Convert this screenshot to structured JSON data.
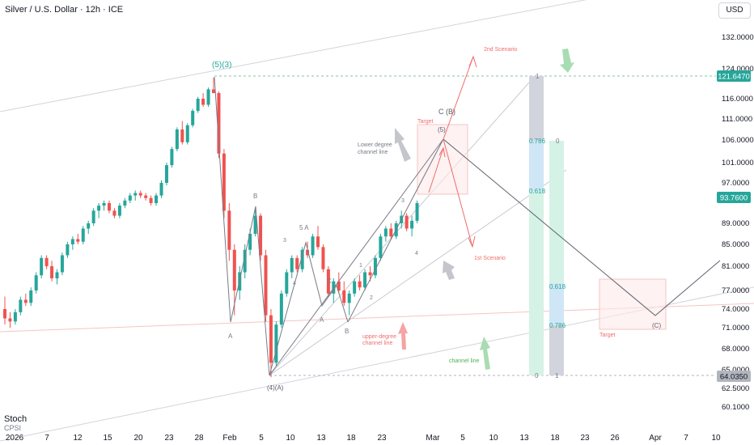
{
  "header": {
    "title": "Silver / U.S. Dollar · 12h · ICE",
    "currency_button": "USD"
  },
  "indicator": {
    "name": "Stoch",
    "sub": "CPSI"
  },
  "colors": {
    "up": "#26a69a",
    "down": "#ef5350",
    "fib_green": "#26a69a",
    "annotation_red": "#f06c6c",
    "annotation_green": "#4caf50",
    "wave_grey": "#787b86"
  },
  "chart_data": {
    "type": "candlestick",
    "symbol": "Silver / U.S. Dollar",
    "interval": "12h",
    "exchange": "ICE",
    "y_ticks": [
      132.0,
      124.0,
      116.0,
      111.0,
      106.0,
      101.0,
      97.0,
      89.0,
      85.0,
      81.0,
      77.0,
      74.0,
      71.0,
      68.0,
      65.0,
      62.5,
      60.1
    ],
    "y_tick_labels": [
      "132.0000",
      "124.0000",
      "116.0000",
      "111.0000",
      "106.0000",
      "101.0000",
      "97.0000",
      "89.0000",
      "85.0000",
      "81.0000",
      "77.0000",
      "74.0000",
      "71.0000",
      "68.0000",
      "65.0000",
      "62.5000",
      "60.1000"
    ],
    "x_tick_labels": [
      "2026",
      "7",
      "12",
      "15",
      "20",
      "23",
      "28",
      "Feb",
      "5",
      "10",
      "13",
      "18",
      "23",
      "Mar",
      "5",
      "10",
      "13",
      "18",
      "23",
      "26",
      "Apr",
      "7",
      "10"
    ],
    "price_labels": [
      {
        "value": "121.6470",
        "color": "#26a69a"
      },
      {
        "value": "93.7600",
        "color": "#26a69a"
      },
      {
        "value": "64.0350",
        "color": "#b2b5be"
      }
    ],
    "candles": [
      [
        74.0,
        76.0,
        71.5,
        72.5
      ],
      [
        72.5,
        73.5,
        71.0,
        72.0
      ],
      [
        72.0,
        74.0,
        71.5,
        73.5
      ],
      [
        73.5,
        76.0,
        73.0,
        75.5
      ],
      [
        75.5,
        76.5,
        74.5,
        75.0
      ],
      [
        75.0,
        77.5,
        74.5,
        77.0
      ],
      [
        77.0,
        80.0,
        76.5,
        79.5
      ],
      [
        79.5,
        83.0,
        79.0,
        82.5
      ],
      [
        82.5,
        83.0,
        80.5,
        81.0
      ],
      [
        81.0,
        82.0,
        78.5,
        79.0
      ],
      [
        79.0,
        80.5,
        78.0,
        80.0
      ],
      [
        80.0,
        83.5,
        79.5,
        83.0
      ],
      [
        83.0,
        85.5,
        82.5,
        85.0
      ],
      [
        85.0,
        86.5,
        84.0,
        86.0
      ],
      [
        86.0,
        87.0,
        85.0,
        85.5
      ],
      [
        85.5,
        88.5,
        85.0,
        88.0
      ],
      [
        88.0,
        89.5,
        87.0,
        89.0
      ],
      [
        89.0,
        92.0,
        88.5,
        91.5
      ],
      [
        91.5,
        93.0,
        90.0,
        92.5
      ],
      [
        92.5,
        93.5,
        91.5,
        93.0
      ],
      [
        93.0,
        93.5,
        91.0,
        91.5
      ],
      [
        91.5,
        92.0,
        90.0,
        90.5
      ],
      [
        90.5,
        93.0,
        90.0,
        92.5
      ],
      [
        92.5,
        94.0,
        92.0,
        93.5
      ],
      [
        93.5,
        95.0,
        93.0,
        94.5
      ],
      [
        94.5,
        95.5,
        93.5,
        95.0
      ],
      [
        95.0,
        95.5,
        94.0,
        94.5
      ],
      [
        94.5,
        95.0,
        93.5,
        94.0
      ],
      [
        94.0,
        94.5,
        92.5,
        93.0
      ],
      [
        93.0,
        95.0,
        92.5,
        94.5
      ],
      [
        94.5,
        97.5,
        94.0,
        97.0
      ],
      [
        97.0,
        101.0,
        96.5,
        100.5
      ],
      [
        100.5,
        104.5,
        100.0,
        104.0
      ],
      [
        104.0,
        109.0,
        103.5,
        108.5
      ],
      [
        108.5,
        110.5,
        105.0,
        105.5
      ],
      [
        105.5,
        110.0,
        105.0,
        109.5
      ],
      [
        109.5,
        113.5,
        109.0,
        113.0
      ],
      [
        113.0,
        116.5,
        112.5,
        116.0
      ],
      [
        116.0,
        117.5,
        114.0,
        114.5
      ],
      [
        114.5,
        119.0,
        114.0,
        118.5
      ],
      [
        118.5,
        121.6,
        117.5,
        117.5
      ],
      [
        117.5,
        118.0,
        102.0,
        103.0
      ],
      [
        103.0,
        104.0,
        90.0,
        91.5
      ],
      [
        91.5,
        93.0,
        82.0,
        84.0
      ],
      [
        84.0,
        85.0,
        73.0,
        77.0
      ],
      [
        77.0,
        81.0,
        75.5,
        80.0
      ],
      [
        80.0,
        85.0,
        79.0,
        84.0
      ],
      [
        84.0,
        88.0,
        83.0,
        87.0
      ],
      [
        87.0,
        92.0,
        86.5,
        90.5
      ],
      [
        90.5,
        91.0,
        82.0,
        83.0
      ],
      [
        83.0,
        84.0,
        72.0,
        73.0
      ],
      [
        73.0,
        74.0,
        64.0,
        66.0
      ],
      [
        66.0,
        72.0,
        65.5,
        71.5
      ],
      [
        71.5,
        77.0,
        71.0,
        76.5
      ],
      [
        76.5,
        80.5,
        76.0,
        80.0
      ],
      [
        80.0,
        83.0,
        79.0,
        82.5
      ],
      [
        82.5,
        83.0,
        80.0,
        80.5
      ],
      [
        80.5,
        84.5,
        80.0,
        84.0
      ],
      [
        84.0,
        85.5,
        82.5,
        83.0
      ],
      [
        83.0,
        87.0,
        82.5,
        86.5
      ],
      [
        86.5,
        88.5,
        84.0,
        84.5
      ],
      [
        84.5,
        85.0,
        80.0,
        80.5
      ],
      [
        80.5,
        81.0,
        76.0,
        76.5
      ],
      [
        76.5,
        79.0,
        75.0,
        78.5
      ],
      [
        78.5,
        80.0,
        76.5,
        77.0
      ],
      [
        77.0,
        78.5,
        74.5,
        75.0
      ],
      [
        75.0,
        77.0,
        73.0,
        76.5
      ],
      [
        76.5,
        79.0,
        76.0,
        78.5
      ],
      [
        78.5,
        79.5,
        77.0,
        77.5
      ],
      [
        77.5,
        80.5,
        77.0,
        80.0
      ],
      [
        80.0,
        81.0,
        78.5,
        79.5
      ],
      [
        79.5,
        83.0,
        79.0,
        82.5
      ],
      [
        82.5,
        87.0,
        82.0,
        86.5
      ],
      [
        86.5,
        88.5,
        85.5,
        88.0
      ],
      [
        88.0,
        89.0,
        86.0,
        86.5
      ],
      [
        86.5,
        89.5,
        86.0,
        89.0
      ],
      [
        89.0,
        91.5,
        88.0,
        90.5
      ],
      [
        90.5,
        91.0,
        87.5,
        88.0
      ],
      [
        88.0,
        90.5,
        86.5,
        89.5
      ],
      [
        89.5,
        93.5,
        89.0,
        93.0
      ]
    ],
    "fib_1": {
      "levels": [
        "1",
        "0.786",
        "0.618",
        "0"
      ]
    },
    "fib_2": {
      "levels": [
        "0",
        "0.618",
        "0.786",
        "1"
      ]
    },
    "annotations": [
      {
        "text": "(5)(3)",
        "type": "wave"
      },
      {
        "text": "B",
        "type": "wave"
      },
      {
        "text": "A",
        "type": "wave"
      },
      {
        "text": "5 A",
        "type": "wave"
      },
      {
        "text": "3",
        "type": "wave"
      },
      {
        "text": "4",
        "type": "wave"
      },
      {
        "text": "C",
        "type": "wave"
      },
      {
        "text": "A",
        "type": "wave"
      },
      {
        "text": "B",
        "type": "wave"
      },
      {
        "text": "1",
        "type": "wave"
      },
      {
        "text": "2",
        "type": "wave"
      },
      {
        "text": "3",
        "type": "wave"
      },
      {
        "text": "4",
        "type": "wave"
      },
      {
        "text": "(4)(A)",
        "type": "wave"
      },
      {
        "text": "C (B)",
        "type": "wave"
      },
      {
        "text": "(5)",
        "type": "wave"
      },
      {
        "text": "(C)",
        "type": "wave"
      },
      {
        "text": "Target",
        "type": "target"
      },
      {
        "text": "Target",
        "type": "target"
      },
      {
        "text": "2nd Scenario",
        "type": "scenario"
      },
      {
        "text": "1st Scenario",
        "type": "scenario"
      },
      {
        "text": "Lower degree\nchannel line",
        "type": "label"
      },
      {
        "text": "upper-degree\nchannel line",
        "type": "label"
      },
      {
        "text": "channel line",
        "type": "label"
      }
    ]
  }
}
